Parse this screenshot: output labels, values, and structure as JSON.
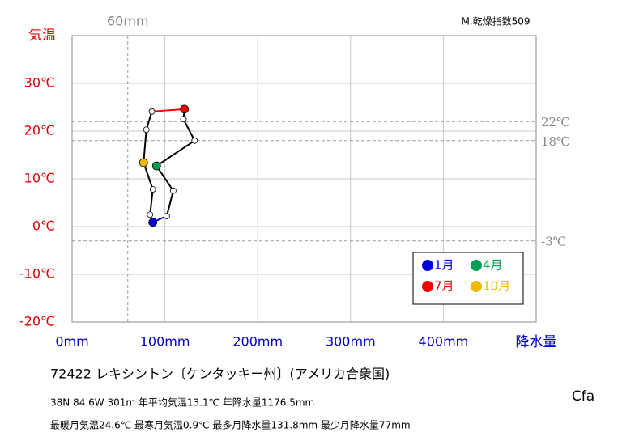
{
  "chart_data": {
    "type": "climograph",
    "top_note": "M.乾燥指数509",
    "y_axis_label": "気温",
    "x_axis_label": "降水量",
    "xlim": [
      0,
      500
    ],
    "ylim": [
      -20,
      40
    ],
    "xticks": [
      {
        "value": 0,
        "label": "0mm"
      },
      {
        "value": 100,
        "label": "100mm"
      },
      {
        "value": 200,
        "label": "200mm"
      },
      {
        "value": 300,
        "label": "300mm"
      },
      {
        "value": 400,
        "label": "400mm"
      }
    ],
    "yticks": [
      {
        "value": -20,
        "label": "-20℃"
      },
      {
        "value": -10,
        "label": "-10℃"
      },
      {
        "value": 0,
        "label": "0℃"
      },
      {
        "value": 10,
        "label": "10℃"
      },
      {
        "value": 20,
        "label": "20℃"
      },
      {
        "value": 30,
        "label": "30℃"
      }
    ],
    "hlines": [
      {
        "value": 22,
        "label": "22℃"
      },
      {
        "value": 18,
        "label": "18℃"
      },
      {
        "value": -3,
        "label": "-3℃"
      }
    ],
    "vlines": [
      {
        "value": 60,
        "label": "60mm"
      }
    ],
    "grid": true,
    "x": [
      87,
      102,
      109,
      91,
      132,
      120,
      121,
      86,
      80,
      77,
      87,
      84
    ],
    "series": [
      {
        "values": [
          0.9,
          2.2,
          7.5,
          12.7,
          18.0,
          22.5,
          24.6,
          24.1,
          20.3,
          13.4,
          7.8,
          2.5
        ]
      }
    ],
    "point_colors": [
      "#0000dd",
      null,
      null,
      "#00a050",
      null,
      null,
      "#ee0000",
      null,
      null,
      "#f0b800",
      null,
      null
    ],
    "line_colors": [
      "#0000dd",
      "#000000",
      "#000000",
      "#000000",
      "#000000",
      "#000000",
      "#ee0000",
      "#000000",
      "#000000",
      "#000000",
      "#000000",
      "#000000"
    ],
    "legend": [
      {
        "label": "1月",
        "color": "#0000dd"
      },
      {
        "label": "4月",
        "color": "#00a050"
      },
      {
        "label": "7月",
        "color": "#ee0000"
      },
      {
        "label": "10月",
        "color": "#f0b800"
      }
    ],
    "station": "72422  レキシントン〔ケンタッキー州〕(アメリカ合衆国)",
    "stats_line1": "38N  84.6W 301m  年平均気温13.1℃ 年降水量1176.5mm",
    "stats_line2": "最暖月気温24.6℃ 最寒月気温0.9℃ 最多月降水量131.8mm 最少月降水量77mm",
    "climate_class": "Cfa"
  }
}
